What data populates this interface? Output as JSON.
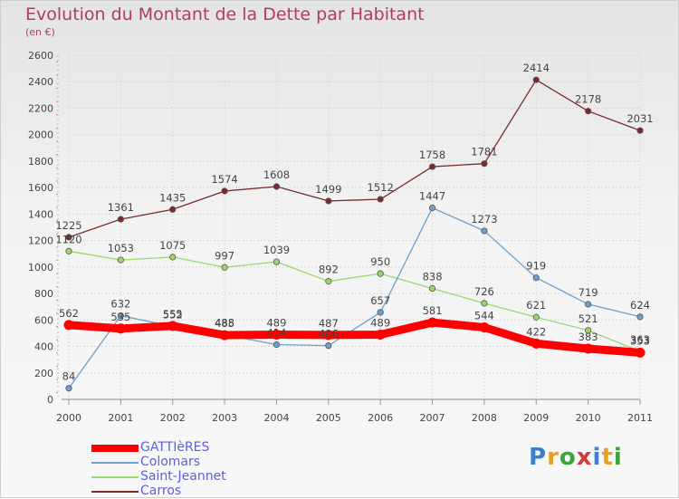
{
  "title": "Evolution du Montant de la Dette par Habitant",
  "unit": "(en €)",
  "logo": {
    "text": "Proxiti",
    "letters": [
      {
        "ch": "P",
        "color": "#3b7fd4"
      },
      {
        "ch": "r",
        "color": "#e8a21c"
      },
      {
        "ch": "o",
        "color": "#3aa53a"
      },
      {
        "ch": "x",
        "color": "#d43b3b"
      },
      {
        "ch": "i",
        "color": "#3b7fd4"
      },
      {
        "ch": "t",
        "color": "#e8a21c"
      },
      {
        "ch": "i",
        "color": "#3aa53a"
      }
    ]
  },
  "chart_data": {
    "type": "line",
    "title": "Evolution du Montant de la Dette par Habitant",
    "ylabel": "(en €)",
    "xlabel": "",
    "categories": [
      "2000",
      "2001",
      "2002",
      "2003",
      "2004",
      "2005",
      "2006",
      "2007",
      "2008",
      "2009",
      "2010",
      "2011"
    ],
    "ylim": [
      0,
      2600
    ],
    "yticks": [
      0,
      200,
      400,
      600,
      800,
      1000,
      1200,
      1400,
      1600,
      1800,
      2000,
      2200,
      2400,
      2600
    ],
    "grid": true,
    "legend": "bottom-left",
    "series": [
      {
        "name": "GATTIèRES",
        "color": "#ff0000",
        "values": [
          562,
          535,
          555,
          485,
          489,
          487,
          489,
          581,
          544,
          422,
          383,
          353
        ]
      },
      {
        "name": "Colomars",
        "color": "#6b9fcf",
        "values": [
          84,
          632,
          552,
          488,
          414,
          406,
          657,
          1447,
          1273,
          919,
          719,
          624
        ]
      },
      {
        "name": "Saint-Jeannet",
        "color": "#9bd86b",
        "values": [
          1120,
          1053,
          1075,
          997,
          1039,
          892,
          950,
          838,
          726,
          621,
          521,
          363
        ]
      },
      {
        "name": "Carros",
        "color": "#7a2a2a",
        "values": [
          1225,
          1361,
          1435,
          1574,
          1608,
          1499,
          1512,
          1758,
          1781,
          2414,
          2178,
          2031
        ]
      }
    ]
  }
}
